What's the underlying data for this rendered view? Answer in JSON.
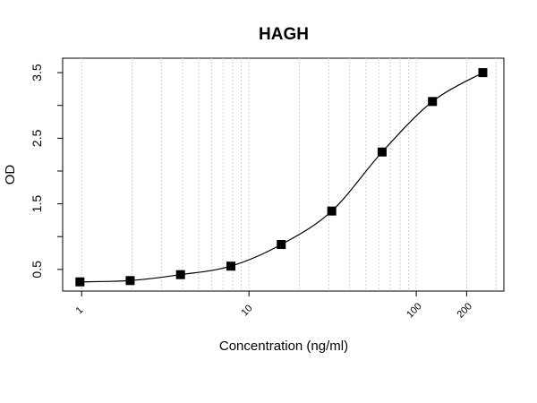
{
  "chart_data": {
    "type": "scatter",
    "title": "HAGH",
    "x_label": "Concentration (ng/ml)",
    "y_label": "OD",
    "log_x": true,
    "fit_curve": true,
    "color": "#000000",
    "series": [
      {
        "x": [
          0.977,
          1.95,
          3.9,
          7.8,
          15.6,
          31.25,
          62.5,
          125,
          250
        ],
        "values": [
          0.31,
          0.33,
          0.42,
          0.55,
          0.88,
          1.39,
          2.29,
          3.06,
          3.5
        ]
      }
    ],
    "xlim": [
      0.77,
      334
    ],
    "ylim": [
      0.17,
      3.72
    ],
    "xticks": [
      1,
      10,
      100,
      200
    ],
    "yticks": [
      0.5,
      1.5,
      2.5,
      3.5
    ],
    "yminor": [
      1,
      2,
      3
    ],
    "xgrid": [
      1,
      2,
      3,
      4,
      5,
      6,
      7,
      8,
      9,
      10,
      20,
      30,
      40,
      50,
      60,
      70,
      80,
      90,
      100,
      200,
      300
    ]
  }
}
